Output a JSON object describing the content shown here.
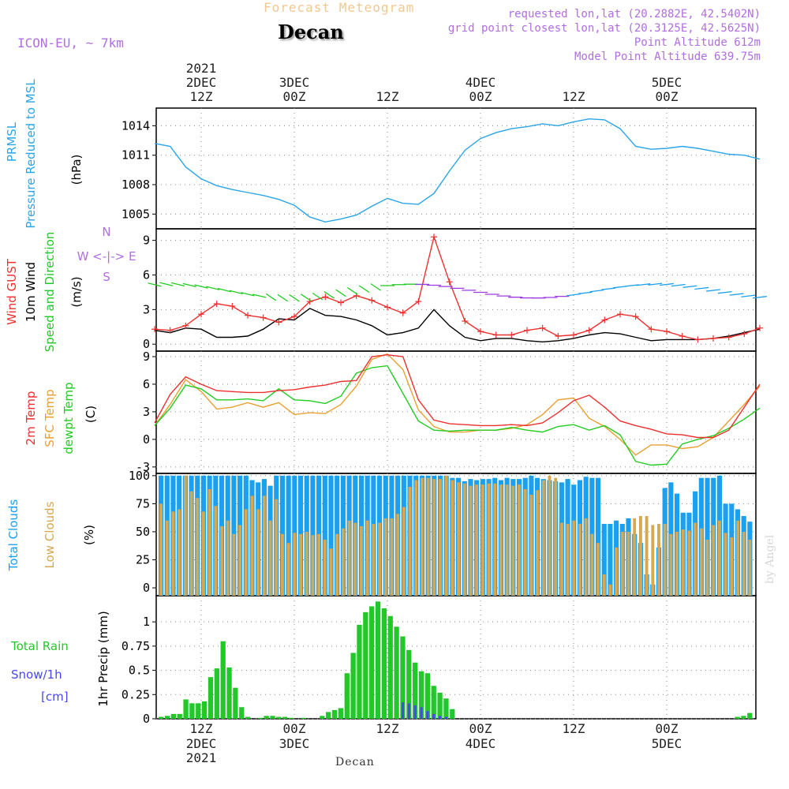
{
  "header": {
    "title": "Forecast Meteogram",
    "station": "Decan",
    "model": "ICON-EU, ~ 7km",
    "requested": "requested lon,lat (20.2882E, 42.5402N)",
    "grid_point": "grid point closest lon,lat (20.3125E, 42.5625N)",
    "point_altitude": "Point Altitude 612m",
    "model_point_altitude": "Model Point Altitude 639.75m"
  },
  "credit": "by Angel",
  "bottom_label": "Decan",
  "time_axis": {
    "year": "2021",
    "hour_ticks": [
      "12Z",
      "00Z",
      "12Z",
      "00Z",
      "12Z",
      "00Z"
    ],
    "day_labels": [
      "2DEC",
      "3DEC",
      "4DEC",
      "5DEC"
    ]
  },
  "colors": {
    "pressure": "#2aa5e6",
    "gust": "#ee3030",
    "wind": "#000000",
    "temp": "#ee3030",
    "sfc_temp": "#e8a030",
    "dewpoint": "#22cc22",
    "total_clouds": "#1aa0ee",
    "low_clouds": "#d8a850",
    "rain": "#22c82a",
    "snow": "#4848ee",
    "label_purple": "#b06ee0"
  },
  "chart_data": [
    {
      "type": "line",
      "panel": "pressure",
      "ylabels": [
        "PRMSL",
        "Pressure Reduced to MSL",
        "(hPa)"
      ],
      "yticks": [
        1005,
        1008,
        1011,
        1014
      ],
      "ylim": [
        1003.5,
        1015.8
      ],
      "x_hours": [
        6,
        84
      ],
      "series": [
        {
          "name": "PRMSL",
          "x": [
            6,
            8,
            10,
            12,
            14,
            16,
            18,
            20,
            22,
            24,
            26,
            28,
            30,
            32,
            34,
            36,
            38,
            40,
            42,
            44,
            46,
            48,
            50,
            52,
            54,
            56,
            58,
            60,
            62,
            64,
            66,
            68,
            70,
            72,
            74,
            76,
            78,
            80,
            82,
            84
          ],
          "values": [
            1012.2,
            1011.9,
            1009.8,
            1008.6,
            1007.9,
            1007.5,
            1007.2,
            1006.9,
            1006.5,
            1005.9,
            1004.7,
            1004.2,
            1004.5,
            1004.9,
            1005.8,
            1006.6,
            1006.1,
            1006.0,
            1007.1,
            1009.4,
            1011.5,
            1012.7,
            1013.3,
            1013.7,
            1013.9,
            1014.2,
            1014.0,
            1014.4,
            1014.7,
            1014.6,
            1013.7,
            1011.9,
            1011.6,
            1011.7,
            1011.9,
            1011.7,
            1011.4,
            1011.1,
            1011.0,
            1010.6
          ]
        }
      ]
    },
    {
      "type": "line",
      "panel": "wind",
      "ylabels": [
        "Wind GUST",
        "10m Wind",
        "Speed and Direction",
        "(m/s)"
      ],
      "compass": [
        "N",
        "W <-|-> E",
        "S"
      ],
      "yticks": [
        0,
        3,
        6,
        9
      ],
      "ylim": [
        -0.6,
        10
      ],
      "series": [
        {
          "name": "Wind GUST",
          "x": [
            6,
            8,
            10,
            12,
            14,
            16,
            18,
            20,
            22,
            24,
            26,
            28,
            30,
            32,
            34,
            36,
            38,
            40,
            42,
            44,
            46,
            48,
            50,
            52,
            54,
            56,
            58,
            60,
            62,
            64,
            66,
            68,
            70,
            72,
            74,
            76,
            78,
            80,
            82,
            84
          ],
          "values": [
            1.3,
            1.2,
            1.6,
            2.6,
            3.5,
            3.3,
            2.5,
            2.3,
            1.9,
            2.4,
            3.7,
            4.1,
            3.6,
            4.2,
            3.8,
            3.2,
            2.7,
            3.7,
            9.3,
            5.4,
            2.0,
            1.1,
            0.8,
            0.8,
            1.2,
            1.4,
            0.7,
            0.8,
            1.2,
            2.1,
            2.6,
            2.4,
            1.3,
            1.1,
            0.7,
            0.4,
            0.5,
            0.6,
            0.9,
            1.4
          ]
        },
        {
          "name": "10m Wind",
          "x": [
            6,
            8,
            10,
            12,
            14,
            16,
            18,
            20,
            22,
            24,
            26,
            28,
            30,
            32,
            34,
            36,
            38,
            40,
            42,
            44,
            46,
            48,
            50,
            52,
            54,
            56,
            58,
            60,
            62,
            64,
            66,
            68,
            70,
            72,
            74,
            76,
            78,
            80,
            82,
            84
          ],
          "values": [
            1.2,
            1.0,
            1.4,
            1.3,
            0.6,
            0.6,
            0.7,
            1.3,
            2.2,
            2.1,
            3.1,
            2.5,
            2.4,
            2.1,
            1.6,
            0.8,
            1.0,
            1.4,
            3.0,
            1.6,
            0.6,
            0.3,
            0.5,
            0.5,
            0.3,
            0.2,
            0.3,
            0.5,
            0.8,
            1.0,
            0.9,
            0.6,
            0.3,
            0.4,
            0.4,
            0.4,
            0.5,
            0.7,
            1.0,
            1.3
          ]
        }
      ]
    },
    {
      "type": "line",
      "panel": "temperature",
      "ylabels": [
        "2m Temp",
        "SFC Temp",
        "dewpt Temp",
        "(C)"
      ],
      "yticks": [
        -3,
        0,
        3,
        6,
        9
      ],
      "ylim": [
        -3.7,
        9.6
      ],
      "series": [
        {
          "name": "2m Temp",
          "x": [
            6,
            8,
            10,
            12,
            14,
            16,
            18,
            20,
            22,
            24,
            26,
            28,
            30,
            32,
            34,
            36,
            38,
            40,
            42,
            44,
            46,
            48,
            50,
            52,
            54,
            56,
            58,
            60,
            62,
            64,
            66,
            68,
            70,
            72,
            74,
            76,
            78,
            80,
            82,
            84
          ],
          "values": [
            1.8,
            4.9,
            6.8,
            6.0,
            5.3,
            5.2,
            5.1,
            5.1,
            5.3,
            5.4,
            5.7,
            5.9,
            6.3,
            6.4,
            9.0,
            9.2,
            9.0,
            4.3,
            2.1,
            1.7,
            1.6,
            1.5,
            1.5,
            1.6,
            1.5,
            1.8,
            2.9,
            4.2,
            4.8,
            3.5,
            2.0,
            1.5,
            1.1,
            0.6,
            0.5,
            0.2,
            0.2,
            1.0,
            3.5,
            6.0
          ]
        },
        {
          "name": "SFC Temp",
          "x": [
            6,
            8,
            10,
            12,
            14,
            16,
            18,
            20,
            22,
            24,
            26,
            28,
            30,
            32,
            34,
            36,
            38,
            40,
            42,
            44,
            46,
            48,
            50,
            52,
            54,
            56,
            58,
            60,
            62,
            64,
            66,
            68,
            70,
            72,
            74,
            76,
            78,
            80,
            82,
            84
          ],
          "values": [
            1.5,
            3.8,
            6.5,
            5.2,
            3.3,
            3.5,
            4.0,
            3.5,
            4.0,
            2.7,
            2.9,
            2.8,
            3.8,
            5.8,
            8.7,
            9.3,
            7.6,
            3.2,
            1.4,
            0.8,
            0.8,
            1.0,
            1.0,
            1.2,
            1.6,
            2.7,
            4.3,
            4.5,
            2.3,
            1.4,
            0.0,
            -1.7,
            -0.6,
            -0.6,
            -1.0,
            -0.8,
            0.2,
            2.0,
            3.8,
            5.8
          ]
        },
        {
          "name": "dewpt Temp",
          "x": [
            6,
            8,
            10,
            12,
            14,
            16,
            18,
            20,
            22,
            24,
            26,
            28,
            30,
            32,
            34,
            36,
            38,
            40,
            42,
            44,
            46,
            48,
            50,
            52,
            54,
            56,
            58,
            60,
            62,
            64,
            66,
            68,
            70,
            72,
            74,
            76,
            78,
            80,
            82,
            84
          ],
          "values": [
            1.5,
            3.4,
            5.9,
            5.5,
            4.3,
            4.3,
            4.4,
            4.2,
            5.5,
            4.3,
            4.2,
            3.9,
            4.7,
            7.2,
            7.8,
            8.0,
            5.0,
            2.0,
            1.0,
            0.9,
            1.0,
            1.0,
            1.0,
            1.3,
            1.0,
            0.8,
            1.4,
            1.6,
            1.0,
            1.5,
            0.5,
            -2.4,
            -2.8,
            -2.7,
            -0.5,
            0.0,
            0.4,
            1.2,
            2.2,
            3.4
          ]
        }
      ]
    },
    {
      "type": "bar",
      "panel": "clouds",
      "ylabels": [
        "Total Clouds",
        "Low Clouds",
        "(%)"
      ],
      "yticks": [
        0,
        25,
        50,
        75,
        100
      ],
      "ylim": [
        -7,
        102
      ],
      "x_start_hour": 6,
      "x_step_hours": 1,
      "series": [
        {
          "name": "Total Clouds",
          "values": [
            100,
            100,
            100,
            100,
            100,
            100,
            100,
            100,
            100,
            100,
            100,
            100,
            100,
            100,
            100,
            96,
            94,
            97,
            91,
            100,
            100,
            100,
            100,
            100,
            100,
            100,
            100,
            100,
            100,
            100,
            100,
            100,
            100,
            100,
            100,
            100,
            100,
            100,
            100,
            100,
            100,
            100,
            100,
            100,
            100,
            100,
            100,
            100,
            98,
            98,
            95,
            97,
            96,
            97,
            97,
            98,
            96,
            98,
            97,
            97,
            98,
            100,
            98,
            97,
            96,
            95,
            94,
            97,
            92,
            96,
            99,
            98,
            98,
            57,
            57,
            60,
            57,
            62,
            48,
            40,
            12,
            3,
            36,
            89,
            94,
            84,
            67,
            67,
            86,
            98,
            98,
            98,
            100,
            75,
            75,
            70,
            64,
            59
          ]
        },
        {
          "name": "Low Clouds",
          "values": [
            75,
            60,
            68,
            70,
            100,
            86,
            80,
            68,
            88,
            73,
            55,
            60,
            48,
            56,
            70,
            82,
            70,
            82,
            60,
            79,
            48,
            40,
            49,
            48,
            50,
            47,
            48,
            43,
            35,
            48,
            53,
            60,
            58,
            55,
            60,
            57,
            58,
            62,
            62,
            66,
            72,
            90,
            96,
            98,
            98,
            97,
            97,
            100,
            96,
            94,
            93,
            91,
            92,
            92,
            93,
            93,
            92,
            92,
            91,
            92,
            88,
            83,
            87,
            96,
            100,
            98,
            58,
            57,
            60,
            57,
            62,
            48,
            40,
            12,
            3,
            36,
            50,
            50,
            62,
            64,
            64,
            56,
            57,
            57,
            48,
            50,
            52,
            51,
            58,
            53,
            43,
            56,
            60,
            49,
            45,
            60,
            50,
            43
          ]
        }
      ]
    },
    {
      "type": "bar",
      "panel": "precipitation",
      "ylabels": [
        "Total Rain",
        "Snow/1h",
        "[cm]",
        "1hr Precip (mm)"
      ],
      "yticks": [
        "0",
        "0.25",
        "0.5",
        "0.75",
        "1"
      ],
      "ylim": [
        0,
        1.27
      ],
      "x_start_hour": 6,
      "x_step_hours": 1,
      "series": [
        {
          "name": "Total Rain",
          "values": [
            0.02,
            0.03,
            0.05,
            0.05,
            0.2,
            0.16,
            0.16,
            0.18,
            0.43,
            0.52,
            0.8,
            0.53,
            0.32,
            0.12,
            0.02,
            0,
            0.01,
            0.03,
            0.03,
            0.02,
            0.02,
            0.01,
            0,
            0.01,
            0,
            0,
            0.03,
            0.07,
            0.09,
            0.11,
            0.47,
            0.68,
            0.97,
            1.1,
            1.16,
            1.21,
            1.14,
            1.06,
            0.95,
            0.85,
            0.71,
            0.58,
            0.49,
            0.47,
            0.34,
            0.27,
            0.21,
            0.1,
            0,
            0,
            0,
            0,
            0,
            0,
            0,
            0,
            0,
            0,
            0,
            0,
            0,
            0,
            0,
            0,
            0,
            0,
            0,
            0,
            0,
            0,
            0,
            0,
            0,
            0,
            0,
            0,
            0,
            0,
            0,
            0,
            0,
            0,
            0,
            0,
            0,
            0,
            0,
            0,
            0,
            0,
            0,
            0,
            0,
            0.02,
            0.03,
            0.06
          ]
        },
        {
          "name": "Snow/1h",
          "values": [
            0,
            0,
            0,
            0,
            0,
            0,
            0,
            0,
            0,
            0,
            0,
            0,
            0,
            0,
            0,
            0,
            0,
            0,
            0,
            0,
            0,
            0,
            0,
            0,
            0,
            0,
            0,
            0,
            0,
            0,
            0,
            0,
            0,
            0,
            0,
            0,
            0,
            0,
            0,
            0.17,
            0.16,
            0.14,
            0.12,
            0.08,
            0.05,
            0.03,
            0.02,
            0,
            0,
            0,
            0,
            0,
            0,
            0,
            0,
            0,
            0,
            0,
            0,
            0,
            0,
            0,
            0,
            0,
            0,
            0,
            0,
            0,
            0,
            0,
            0,
            0,
            0,
            0,
            0,
            0,
            0,
            0,
            0,
            0,
            0,
            0,
            0,
            0,
            0,
            0,
            0,
            0,
            0,
            0,
            0,
            0,
            0,
            0,
            0
          ]
        }
      ]
    }
  ]
}
